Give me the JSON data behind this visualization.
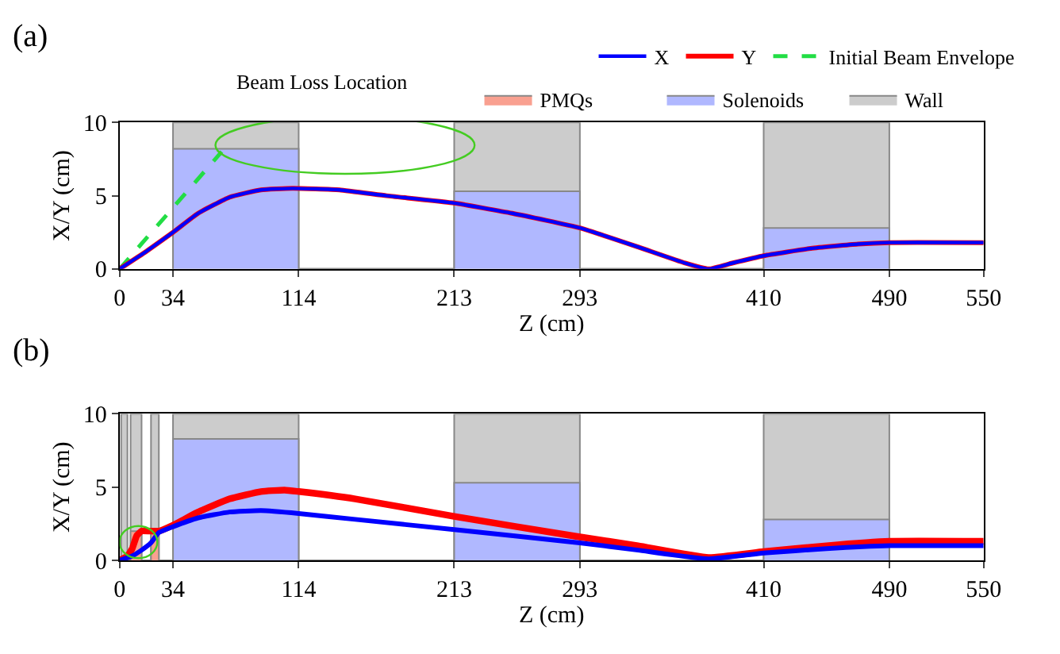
{
  "chart_data": [
    {
      "type": "line",
      "title": "(a)",
      "xlabel": "Z (cm)",
      "ylabel": "X/Y (cm)",
      "xlim": [
        0,
        550
      ],
      "xticks": [
        0,
        34,
        114,
        213,
        293,
        410,
        490,
        550
      ],
      "ylim": [
        0,
        10
      ],
      "yticks": [
        0,
        5,
        10
      ],
      "legend": "top right",
      "annotations": [
        "Beam Loss Location"
      ],
      "series": [
        {
          "name": "Wall",
          "type": "area",
          "color": "#cccccc",
          "x": [
            34,
            34,
            114,
            114,
            213,
            213,
            293,
            293,
            410,
            410,
            490,
            490
          ],
          "values": [
            0,
            10,
            10,
            0,
            0,
            10,
            10,
            0,
            0,
            10,
            10,
            0
          ]
        },
        {
          "name": "Solenoids",
          "type": "area",
          "color": "#b0b8ff",
          "x": [
            34,
            34,
            114,
            114,
            213,
            213,
            293,
            293,
            410,
            410,
            490,
            490
          ],
          "values": [
            0,
            8.2,
            8.2,
            0,
            0,
            5.3,
            5.3,
            0,
            0,
            2.8,
            2.8,
            0
          ]
        },
        {
          "name": "X",
          "color": "#0000ff",
          "x": [
            0,
            17,
            34,
            50,
            70,
            90,
            110,
            140,
            170,
            213,
            250,
            293,
            330,
            360,
            375,
            390,
            410,
            440,
            470,
            490,
            550
          ],
          "values": [
            0,
            1.2,
            2.5,
            3.8,
            4.9,
            5.4,
            5.5,
            5.4,
            5.0,
            4.5,
            3.8,
            2.8,
            1.5,
            0.4,
            0.0,
            0.4,
            0.9,
            1.4,
            1.7,
            1.8,
            1.8
          ]
        },
        {
          "name": "Y",
          "color": "#ff0000",
          "x": [
            0,
            17,
            34,
            50,
            70,
            90,
            110,
            140,
            170,
            213,
            250,
            293,
            330,
            360,
            375,
            390,
            410,
            440,
            470,
            490,
            550
          ],
          "values": [
            0,
            1.2,
            2.5,
            3.8,
            4.9,
            5.4,
            5.5,
            5.4,
            5.0,
            4.5,
            3.8,
            2.8,
            1.5,
            0.4,
            0.0,
            0.4,
            0.9,
            1.4,
            1.7,
            1.8,
            1.8
          ]
        },
        {
          "name": "Initial Beam Envelope",
          "line_style": "dashed",
          "color": "#22dd44",
          "x": [
            0,
            65
          ],
          "values": [
            0,
            8.0
          ]
        }
      ]
    },
    {
      "type": "line",
      "title": "(b)",
      "xlabel": "Z (cm)",
      "ylabel": "X/Y (cm)",
      "xlim": [
        0,
        550
      ],
      "xticks": [
        0,
        34,
        114,
        213,
        293,
        410,
        490,
        550
      ],
      "ylim": [
        0,
        10
      ],
      "yticks": [
        0,
        5,
        10
      ],
      "series": [
        {
          "name": "Wall",
          "type": "area",
          "color": "#cccccc",
          "x": [
            1,
            1,
            5,
            5,
            7,
            7,
            14,
            14,
            20,
            20,
            25,
            25,
            34,
            34,
            114,
            114,
            213,
            213,
            293,
            293,
            410,
            410,
            490,
            490
          ],
          "values": [
            0,
            10,
            10,
            0,
            0,
            10,
            10,
            0,
            0,
            10,
            10,
            0,
            0,
            10,
            10,
            0,
            0,
            10,
            10,
            0,
            0,
            10,
            10,
            0
          ]
        },
        {
          "name": "Solenoids",
          "type": "area",
          "color": "#b0b8ff",
          "x": [
            34,
            34,
            114,
            114,
            213,
            213,
            293,
            293,
            410,
            410,
            490,
            490
          ],
          "values": [
            0,
            8.3,
            8.3,
            0,
            0,
            5.3,
            5.3,
            0,
            0,
            2.8,
            2.8,
            0
          ]
        },
        {
          "name": "PMQs",
          "type": "area",
          "color": "#f9a090",
          "x": [
            7,
            7,
            14,
            14,
            20,
            20,
            25,
            25
          ],
          "values": [
            0,
            2.0,
            2.0,
            0,
            0,
            2.0,
            2.0,
            0
          ]
        },
        {
          "name": "X",
          "color": "#0000ff",
          "x": [
            0,
            8,
            14,
            20,
            25,
            34,
            50,
            70,
            90,
            114,
            150,
            213,
            293,
            330,
            375,
            410,
            450,
            490,
            550
          ],
          "values": [
            0,
            0.3,
            0.7,
            1.2,
            1.9,
            2.3,
            2.9,
            3.3,
            3.4,
            3.2,
            2.8,
            2.1,
            1.2,
            0.7,
            0.1,
            0.5,
            0.8,
            1.0,
            1.0
          ]
        },
        {
          "name": "Y",
          "color": "#ff0000",
          "x": [
            0,
            5,
            8,
            11,
            14,
            25,
            34,
            50,
            70,
            90,
            105,
            114,
            150,
            213,
            293,
            330,
            375,
            410,
            450,
            490,
            550
          ],
          "values": [
            0,
            0.3,
            0.8,
            1.7,
            2.0,
            2.0,
            2.4,
            3.3,
            4.2,
            4.7,
            4.8,
            4.7,
            4.2,
            3.0,
            1.6,
            1.0,
            0.2,
            0.6,
            1.0,
            1.3,
            1.3
          ]
        }
      ]
    }
  ]
}
